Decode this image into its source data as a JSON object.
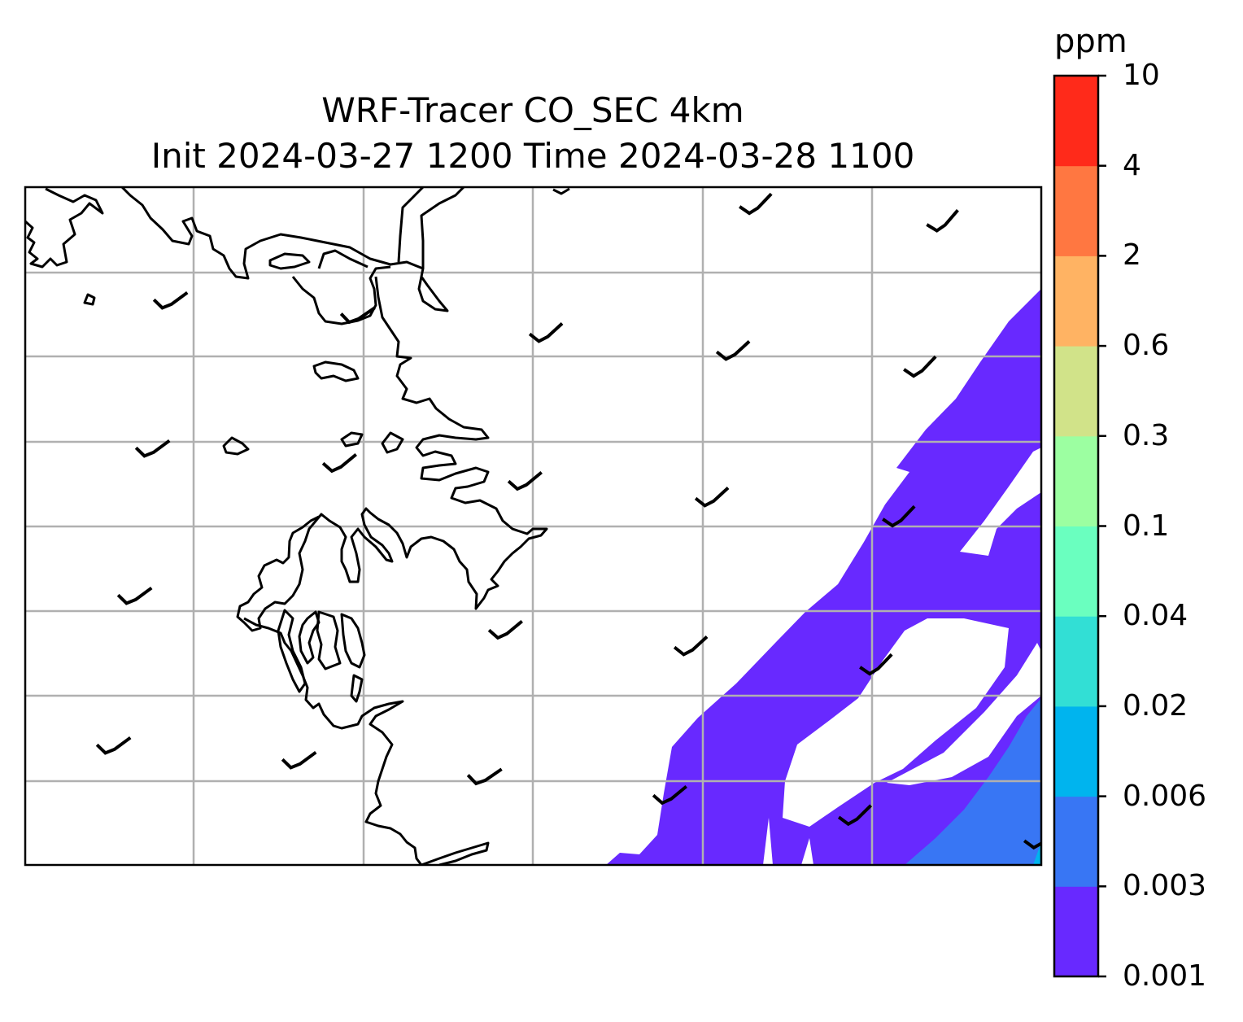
{
  "title": {
    "line1": "WRF-Tracer CO_SEC 4km",
    "line2": "Init 2024-03-27 1200 Time 2024-03-28 1100"
  },
  "colorbar": {
    "unit": "ppm",
    "levels": [
      "0.001",
      "0.003",
      "0.006",
      "0.02",
      "0.04",
      "0.1",
      "0.3",
      "0.6",
      "2",
      "4",
      "10"
    ],
    "colors": [
      "#6829ff",
      "#3876f4",
      "#00b4ee",
      "#32dfd5",
      "#6affbf",
      "#9cffa1",
      "#d1e389",
      "#ffb363",
      "#ff7741",
      "#ff2a1a"
    ]
  },
  "map": {
    "grid": "on",
    "features": [
      "coastline",
      "wind-barbs",
      "tracer-contours"
    ]
  }
}
